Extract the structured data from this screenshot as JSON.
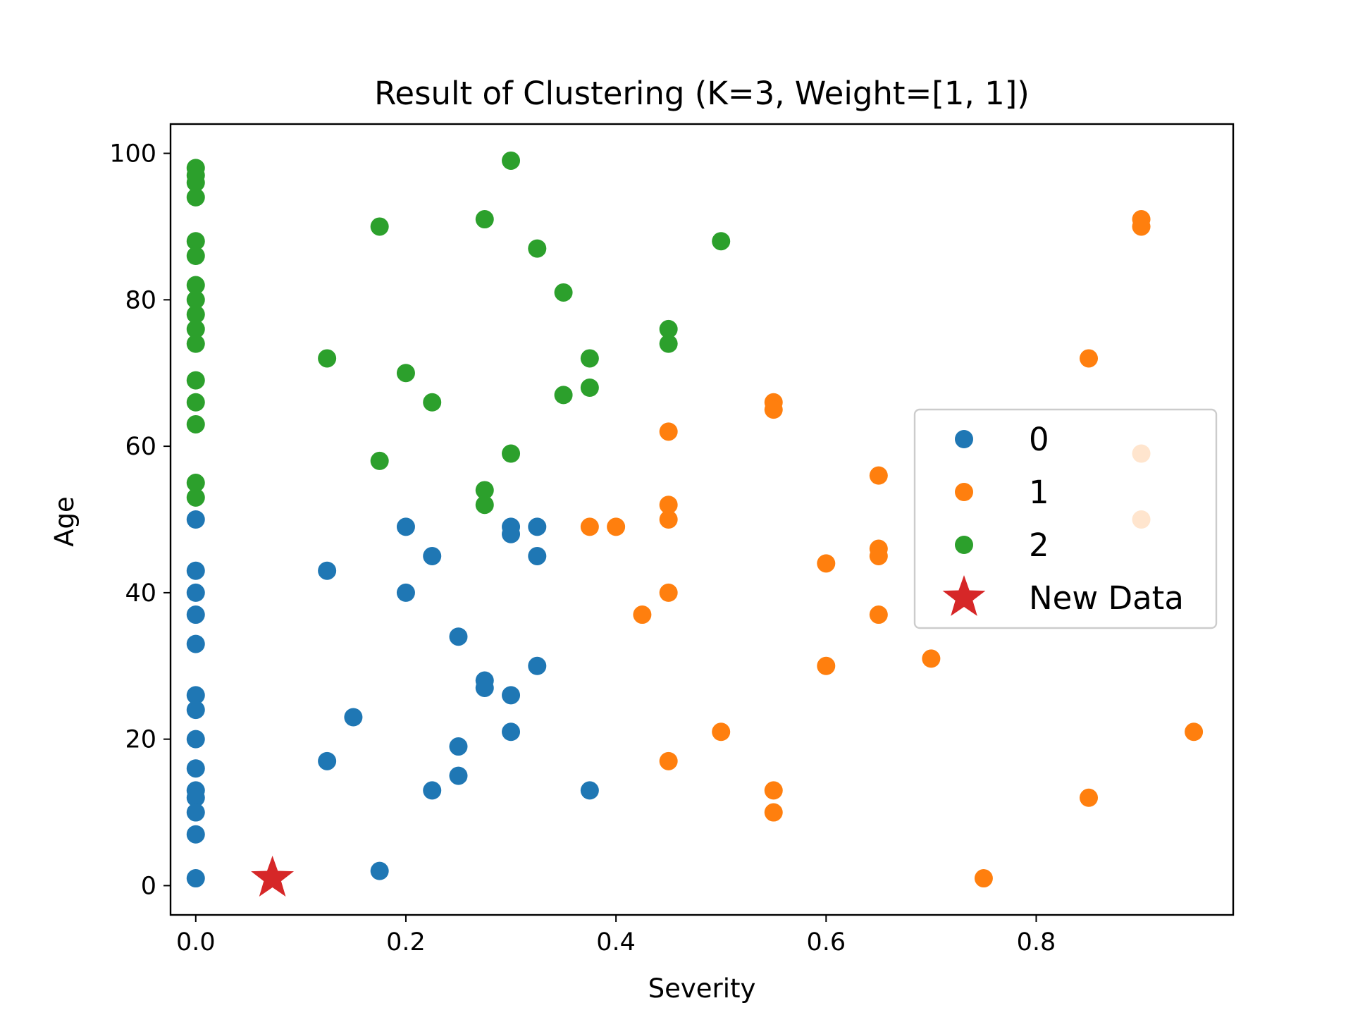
{
  "chart_data": {
    "type": "scatter",
    "title": "Result of Clustering (K=3, Weight=[1, 1])",
    "xlabel": "Severity",
    "ylabel": "Age",
    "xlim": [
      -0.024,
      0.9875
    ],
    "ylim": [
      -4,
      104
    ],
    "xticks": [
      0.0,
      0.2,
      0.4,
      0.6,
      0.8
    ],
    "xtick_labels": [
      "0.0",
      "0.2",
      "0.4",
      "0.6",
      "0.8"
    ],
    "yticks": [
      0,
      20,
      40,
      60,
      80,
      100
    ],
    "ytick_labels": [
      "0",
      "20",
      "40",
      "60",
      "80",
      "100"
    ],
    "grid": false,
    "legend_placement": "center-right",
    "series": [
      {
        "name": "0",
        "color": "#1f77b4",
        "marker": "circle",
        "points": [
          [
            0.0,
            50
          ],
          [
            0.0,
            43
          ],
          [
            0.0,
            40
          ],
          [
            0.0,
            37
          ],
          [
            0.0,
            33
          ],
          [
            0.0,
            26
          ],
          [
            0.0,
            24
          ],
          [
            0.0,
            20
          ],
          [
            0.0,
            16
          ],
          [
            0.0,
            13
          ],
          [
            0.0,
            12
          ],
          [
            0.0,
            10
          ],
          [
            0.0,
            7
          ],
          [
            0.0,
            1
          ],
          [
            0.125,
            43
          ],
          [
            0.125,
            17
          ],
          [
            0.15,
            23
          ],
          [
            0.175,
            2
          ],
          [
            0.2,
            49
          ],
          [
            0.2,
            40
          ],
          [
            0.225,
            45
          ],
          [
            0.225,
            13
          ],
          [
            0.25,
            34
          ],
          [
            0.25,
            19
          ],
          [
            0.25,
            15
          ],
          [
            0.275,
            28
          ],
          [
            0.275,
            27
          ],
          [
            0.3,
            49
          ],
          [
            0.3,
            48
          ],
          [
            0.3,
            26
          ],
          [
            0.3,
            21
          ],
          [
            0.325,
            49
          ],
          [
            0.325,
            45
          ],
          [
            0.325,
            30
          ],
          [
            0.375,
            13
          ]
        ]
      },
      {
        "name": "1",
        "color": "#ff7f0e",
        "marker": "circle",
        "points": [
          [
            0.375,
            49
          ],
          [
            0.4,
            49
          ],
          [
            0.425,
            37
          ],
          [
            0.45,
            62
          ],
          [
            0.45,
            52
          ],
          [
            0.45,
            50
          ],
          [
            0.45,
            40
          ],
          [
            0.45,
            17
          ],
          [
            0.5,
            21
          ],
          [
            0.55,
            66
          ],
          [
            0.55,
            65
          ],
          [
            0.55,
            13
          ],
          [
            0.55,
            10
          ],
          [
            0.6,
            44
          ],
          [
            0.6,
            30
          ],
          [
            0.65,
            56
          ],
          [
            0.65,
            46
          ],
          [
            0.65,
            45
          ],
          [
            0.65,
            37
          ],
          [
            0.7,
            31
          ],
          [
            0.75,
            1
          ],
          [
            0.85,
            72
          ],
          [
            0.85,
            12
          ],
          [
            0.9,
            91
          ],
          [
            0.9,
            90
          ],
          [
            0.9,
            59
          ],
          [
            0.9,
            50
          ],
          [
            0.95,
            21
          ]
        ]
      },
      {
        "name": "2",
        "color": "#2ca02c",
        "marker": "circle",
        "points": [
          [
            0.0,
            98
          ],
          [
            0.0,
            97
          ],
          [
            0.0,
            96
          ],
          [
            0.0,
            94
          ],
          [
            0.0,
            88
          ],
          [
            0.0,
            86
          ],
          [
            0.0,
            82
          ],
          [
            0.0,
            80
          ],
          [
            0.0,
            78
          ],
          [
            0.0,
            76
          ],
          [
            0.0,
            74
          ],
          [
            0.0,
            69
          ],
          [
            0.0,
            66
          ],
          [
            0.0,
            63
          ],
          [
            0.0,
            55
          ],
          [
            0.0,
            53
          ],
          [
            0.125,
            72
          ],
          [
            0.175,
            90
          ],
          [
            0.175,
            58
          ],
          [
            0.2,
            70
          ],
          [
            0.225,
            66
          ],
          [
            0.275,
            91
          ],
          [
            0.275,
            54
          ],
          [
            0.275,
            52
          ],
          [
            0.3,
            99
          ],
          [
            0.3,
            59
          ],
          [
            0.325,
            87
          ],
          [
            0.35,
            81
          ],
          [
            0.35,
            67
          ],
          [
            0.375,
            72
          ],
          [
            0.375,
            68
          ],
          [
            0.45,
            76
          ],
          [
            0.45,
            74
          ],
          [
            0.5,
            88
          ]
        ]
      },
      {
        "name": "New Data",
        "color": "#d62728",
        "marker": "star",
        "points": [
          [
            0.073,
            1
          ]
        ]
      }
    ]
  }
}
